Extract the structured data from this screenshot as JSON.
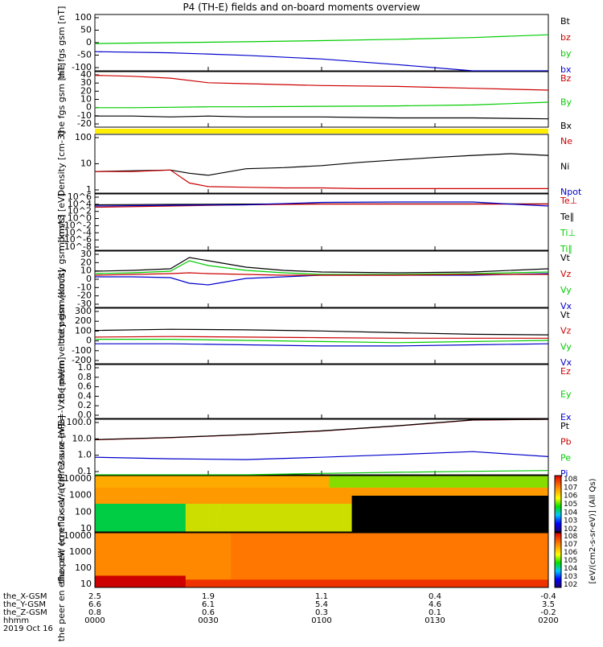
{
  "title": "P4 (TH-E) fields and on-board moments overview",
  "colors": {
    "black": "#000000",
    "red": "#cc0000",
    "green": "#00cc00",
    "blue": "#0000cc",
    "yellow": "#ffee00"
  },
  "time_axis": {
    "rows": [
      {
        "label": "the_X-GSM",
        "values": [
          "2.5",
          "1.9",
          "1.1",
          "0.4",
          "-0.4"
        ]
      },
      {
        "label": "the_Y-GSM",
        "values": [
          "6.6",
          "6.1",
          "5.4",
          "4.6",
          "3.5"
        ]
      },
      {
        "label": "the_Z-GSM",
        "values": [
          "0.8",
          "0.6",
          "0.3",
          "0.1",
          "-0.2"
        ]
      },
      {
        "label": "hhmm",
        "values": [
          "0000",
          "0030",
          "0100",
          "0130",
          "0200"
        ]
      }
    ],
    "date": "2019 Oct 16"
  },
  "colorbar": {
    "label": "[eV/(cm2-s-sr-eV)] (All Qs)",
    "ticks_top": [
      "10^8",
      "10^7",
      "10^6",
      "10^5",
      "10^4",
      "10^3",
      "10^2"
    ],
    "ticks_bottom": [
      "10^8",
      "10^7",
      "10^6",
      "10^5",
      "10^4",
      "10^3",
      "10^2"
    ]
  },
  "chart_data": [
    {
      "type": "line",
      "id": "fgs_gsm",
      "ylabel": "the fgs gsm [nT]",
      "ylim": [
        -100,
        100
      ],
      "yticks": [
        "100",
        "50",
        "0",
        "-50",
        "-100"
      ],
      "legend": [
        {
          "name": "Bt",
          "color": "black"
        },
        {
          "name": "bz",
          "color": "red"
        },
        {
          "name": "by",
          "color": "green"
        },
        {
          "name": "bx",
          "color": "blue"
        }
      ],
      "x": [
        0,
        20,
        40,
        60,
        80,
        100,
        120
      ],
      "series": [
        {
          "name": "by",
          "color": "green",
          "values": [
            -3,
            0,
            3,
            7,
            12,
            18,
            28
          ]
        },
        {
          "name": "bx",
          "color": "blue",
          "values": [
            -32,
            -36,
            -45,
            -58,
            -78,
            -105,
            -118
          ]
        }
      ]
    },
    {
      "type": "line",
      "id": "fgs_dsl",
      "ylabel": "the fgs gsm [nT]",
      "ylim": [
        -20,
        40
      ],
      "yticks": [
        "40",
        "30",
        "20",
        "10",
        "0",
        "-10",
        "-20"
      ],
      "legend": [
        {
          "name": "Bz",
          "color": "red"
        },
        {
          "name": "By",
          "color": "green"
        },
        {
          "name": "Bx",
          "color": "black"
        }
      ],
      "x": [
        0,
        10,
        20,
        30,
        40,
        60,
        80,
        100,
        120
      ],
      "series": [
        {
          "name": "Bz",
          "color": "red",
          "values": [
            36,
            35,
            33,
            28,
            27,
            25,
            24,
            22,
            20
          ]
        },
        {
          "name": "By",
          "color": "green",
          "values": [
            1,
            1,
            1.5,
            2,
            2,
            2.5,
            3,
            4,
            7
          ]
        },
        {
          "name": "Bx",
          "color": "black",
          "values": [
            -8,
            -8,
            -9,
            -8,
            -9,
            -9,
            -10,
            -10,
            -11
          ]
        }
      ]
    },
    {
      "type": "line",
      "id": "density",
      "ylabel": "Density [cm-3]",
      "yscale": "log",
      "ylim": [
        1,
        200
      ],
      "yticks": [
        "100",
        "10",
        "1"
      ],
      "legend": [
        {
          "name": "Ne",
          "color": "red"
        },
        {
          "name": "Ni",
          "color": "black"
        },
        {
          "name": "Npot",
          "color": "blue"
        }
      ],
      "x": [
        0,
        10,
        20,
        25,
        30,
        40,
        50,
        60,
        70,
        80,
        90,
        100,
        110,
        120
      ],
      "series": [
        {
          "name": "Ni",
          "color": "black",
          "values": [
            7,
            7.5,
            8,
            6,
            5,
            9,
            10,
            12,
            16,
            20,
            25,
            30,
            35,
            30
          ]
        },
        {
          "name": "Ne",
          "color": "red",
          "values": [
            7,
            7,
            8,
            2.5,
            1.8,
            1.7,
            1.6,
            1.6,
            1.5,
            1.5,
            1.5,
            1.5,
            1.5,
            1.5
          ]
        }
      ]
    },
    {
      "type": "line",
      "id": "moms_temp",
      "ylabel": "momst3 [eV]",
      "yscale": "log",
      "yticks": [
        "10^6",
        "10^4",
        "10^2",
        "10^0",
        "10^-2",
        "10^-4",
        "10^-6",
        "10^-8"
      ],
      "legend": [
        {
          "name": "Te⊥",
          "color": "red"
        },
        {
          "name": "Te∥",
          "color": "black"
        },
        {
          "name": "Ti⊥",
          "color": "green"
        },
        {
          "name": "Ti∥",
          "color": "green"
        }
      ],
      "x": [
        0,
        20,
        40,
        60,
        80,
        100,
        110,
        120
      ],
      "series": [
        {
          "name": "Te∥",
          "color": "black",
          "values": [
            2000,
            2500,
            3000,
            3500,
            3500,
            3500,
            3500,
            3500
          ]
        },
        {
          "name": "Te⊥",
          "color": "red",
          "values": [
            500,
            1000,
            2000,
            3000,
            3000,
            3000,
            3000,
            3000
          ]
        },
        {
          "name": "Ti",
          "color": "blue",
          "values": [
            1000,
            1500,
            2000,
            8000,
            10000,
            10000,
            3000,
            1000
          ]
        }
      ]
    },
    {
      "type": "line",
      "id": "peim_velocity_top",
      "ylabel": "the peim velocity gsm [km/s]",
      "ylim": [
        -40,
        30
      ],
      "yticks": [
        "30",
        "20",
        "10",
        "0",
        "-10",
        "-20",
        "-30"
      ],
      "legend": [
        {
          "name": "Vt",
          "color": "black"
        },
        {
          "name": "Vz",
          "color": "red"
        },
        {
          "name": "Vy",
          "color": "green"
        },
        {
          "name": "Vx",
          "color": "blue"
        }
      ],
      "x": [
        0,
        10,
        20,
        25,
        30,
        40,
        50,
        60,
        80,
        100,
        120
      ],
      "series": [
        {
          "name": "Vt",
          "color": "black",
          "values": [
            5,
            6,
            8,
            22,
            18,
            10,
            6,
            4,
            3,
            4,
            8
          ]
        },
        {
          "name": "Vy",
          "color": "green",
          "values": [
            2,
            3,
            5,
            18,
            12,
            6,
            3,
            1,
            1,
            2,
            4
          ]
        },
        {
          "name": "Vx",
          "color": "blue",
          "values": [
            -2,
            -2,
            -3,
            -10,
            -12,
            -4,
            -2,
            0,
            0,
            0,
            2
          ]
        },
        {
          "name": "Vz",
          "color": "red",
          "values": [
            0,
            1,
            2,
            3,
            2,
            1,
            0,
            0,
            0,
            1,
            1
          ]
        }
      ]
    },
    {
      "type": "line",
      "id": "peem_velocity",
      "ylabel": "the peem velocity gsm [km/s]",
      "ylim": [
        -200,
        300
      ],
      "yticks": [
        "300",
        "200",
        "100",
        "0",
        "-100",
        "-200"
      ],
      "legend": [
        {
          "name": "Vt",
          "color": "black"
        },
        {
          "name": "Vz",
          "color": "red"
        },
        {
          "name": "Vy",
          "color": "green"
        },
        {
          "name": "Vx",
          "color": "blue"
        }
      ],
      "x": [
        0,
        20,
        40,
        60,
        80,
        100,
        120
      ],
      "series": [
        {
          "name": "Vt",
          "color": "black",
          "values": [
            100,
            110,
            105,
            95,
            80,
            65,
            60
          ]
        },
        {
          "name": "Vz",
          "color": "red",
          "values": [
            40,
            45,
            40,
            35,
            30,
            30,
            30
          ]
        },
        {
          "name": "Vy",
          "color": "green",
          "values": [
            20,
            20,
            10,
            0,
            -10,
            0,
            10
          ]
        },
        {
          "name": "Vx",
          "color": "blue",
          "values": [
            -20,
            -20,
            -30,
            -40,
            -40,
            -30,
            -20
          ]
        }
      ]
    },
    {
      "type": "line",
      "id": "efield",
      "ylabel": "E=-VxB [mV/m]",
      "ylim": [
        0,
        1
      ],
      "yticks": [
        "1.0",
        "0.8",
        "0.6",
        "0.4",
        "0.2",
        "0.0"
      ],
      "legend": [
        {
          "name": "Ez",
          "color": "red"
        },
        {
          "name": "Ey",
          "color": "green"
        },
        {
          "name": "Ex",
          "color": "blue"
        }
      ],
      "series": []
    },
    {
      "type": "line",
      "id": "pressure",
      "ylabel": "Pressure [nPa]",
      "yscale": "log",
      "ylim": [
        0.05,
        100
      ],
      "yticks": [
        "100.0",
        "10.0",
        "1.0",
        "0.1"
      ],
      "legend": [
        {
          "name": "Pt",
          "color": "black"
        },
        {
          "name": "Pb",
          "color": "red"
        },
        {
          "name": "Pe",
          "color": "green"
        },
        {
          "name": "Pi",
          "color": "blue"
        }
      ],
      "x": [
        0,
        20,
        40,
        60,
        80,
        100,
        120
      ],
      "series": [
        {
          "name": "Pb",
          "color": "red",
          "values": [
            6,
            8,
            12,
            20,
            40,
            90,
            150
          ]
        },
        {
          "name": "Pt",
          "color": "black",
          "values": [
            6.2,
            8.2,
            12.3,
            20.5,
            41,
            92,
            152
          ]
        },
        {
          "name": "Pi",
          "color": "blue",
          "values": [
            0.55,
            0.45,
            0.4,
            0.55,
            0.8,
            1.2,
            0.6
          ]
        },
        {
          "name": "Pe",
          "color": "green",
          "values": [
            0.04,
            0.045,
            0.05,
            0.06,
            0.07,
            0.08,
            0.09
          ]
        }
      ]
    },
    {
      "type": "heatmap",
      "id": "peir_spectrogram",
      "ylabel": "the peir en eflux eV/ (cm^2-s-sr-eV)",
      "yscale": "log",
      "yticks": [
        "10000",
        "1000",
        "100",
        "10"
      ]
    },
    {
      "type": "heatmap",
      "id": "peer_spectrogram",
      "ylabel": "the peer en eflux eV/ (cm^2-s-sr-eV)",
      "yscale": "log",
      "yticks": [
        "10000",
        "1000",
        "100",
        "10"
      ]
    }
  ]
}
